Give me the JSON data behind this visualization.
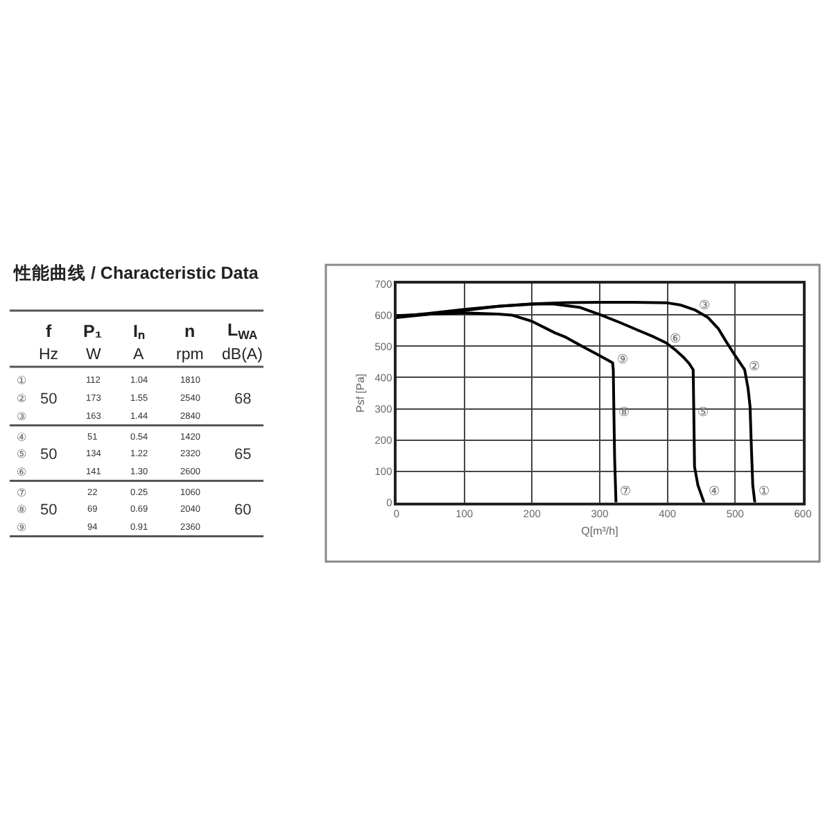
{
  "chart_data": [
    {
      "type": "other",
      "title": "性能曲线 / Characteristic Data",
      "categories": [
        null,
        "f\nHz",
        "P₁\nW",
        "Iₙ\nA",
        "n\nrpm",
        "L$_{WA}$\ndB(A)"
      ],
      "cells": [
        [
          "①",
          null,
          "112",
          "1.04",
          "1810",
          null
        ],
        [
          "②",
          "50",
          "173",
          "1.55",
          "2540",
          "68"
        ],
        [
          "③",
          null,
          "163",
          "1.44",
          "2840",
          null
        ],
        [
          "④",
          null,
          "51",
          "0.54",
          "1420",
          null
        ],
        [
          "⑤",
          "50",
          "134",
          "1.22",
          "2320",
          "65"
        ],
        [
          "⑥",
          null,
          "141",
          "1.30",
          "2600",
          null
        ],
        [
          "⑦",
          null,
          "22",
          "0.25",
          "1060",
          null
        ],
        [
          "⑧",
          "50",
          "69",
          "0.69",
          "2040",
          "60"
        ],
        [
          "⑨",
          null,
          "94",
          "0.91",
          "2360",
          null
        ]
      ]
    },
    {
      "type": "line",
      "xlabel": "Q[m³/h]",
      "ylabel": "Psf [Pa]",
      "xlim": [
        0,
        600
      ],
      "xticks": [
        0,
        100,
        200,
        300,
        400,
        500,
        600
      ],
      "ylim": [
        0,
        700
      ],
      "yticks": [
        0,
        100,
        200,
        300,
        400,
        500,
        600,
        700
      ],
      "grid": true,
      "series": [
        {
          "color": "#000000",
          "x": [
            0,
            50,
            100,
            150,
            200,
            250,
            300,
            350,
            400,
            420,
            440,
            460,
            475,
            487,
            500,
            514,
            519,
            522,
            524,
            526,
            529
          ],
          "values": [
            592,
            603,
            615,
            628,
            636,
            640,
            641,
            641,
            639,
            632,
            617,
            592,
            557,
            514,
            470,
            425,
            366,
            307,
            173,
            55,
            0
          ]
        },
        {
          "color": "#000000",
          "x": [
            0,
            50,
            100,
            150,
            200,
            230,
            270,
            302,
            330,
            357,
            380,
            398,
            412,
            425,
            432,
            438,
            439,
            440,
            445,
            454
          ],
          "values": [
            595,
            606,
            618,
            628,
            635,
            636,
            625,
            600,
            576,
            551,
            530,
            511,
            488,
            462,
            445,
            425,
            277,
            114,
            55,
            0
          ]
        },
        {
          "color": "#000000",
          "x": [
            0,
            50,
            100,
            150,
            170,
            200,
            234,
            250,
            275,
            300,
            319,
            320,
            321,
            322,
            324
          ],
          "values": [
            598,
            603,
            607,
            603,
            600,
            580,
            543,
            529,
            499,
            470,
            447,
            425,
            277,
            143,
            0
          ]
        }
      ],
      "annotations": [
        {
          "text": "③",
          "x": 440,
          "y": 617
        },
        {
          "text": "②",
          "x": 514,
          "y": 425
        },
        {
          "text": "①",
          "x": 529,
          "y": 0
        },
        {
          "text": "⑥",
          "x": 398,
          "y": 511
        },
        {
          "text": "⑤",
          "x": 439,
          "y": 277
        },
        {
          "text": "④",
          "x": 454,
          "y": 0
        },
        {
          "text": "⑨",
          "x": 319,
          "y": 447
        },
        {
          "text": "⑧",
          "x": 321,
          "y": 277
        },
        {
          "text": "⑦",
          "x": 324,
          "y": 0
        }
      ]
    }
  ]
}
